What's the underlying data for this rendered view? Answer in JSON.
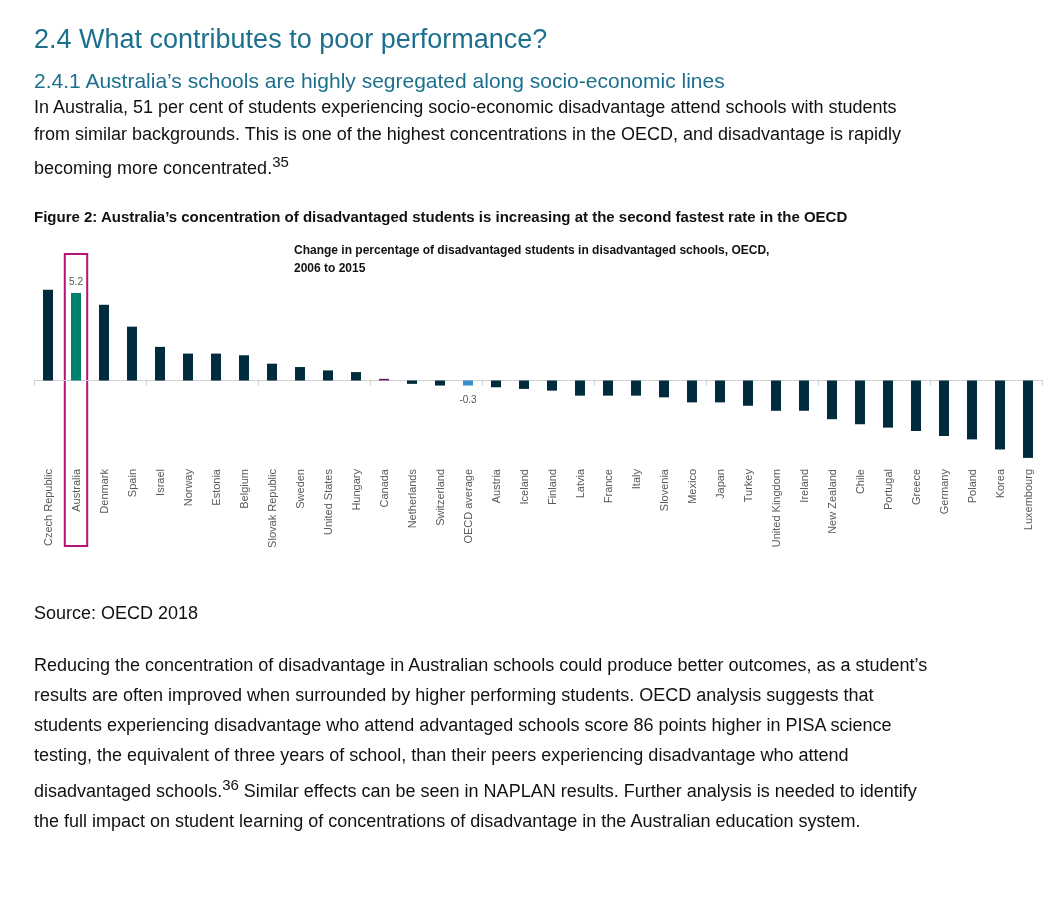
{
  "chart_data": {
    "type": "bar",
    "title": "Change in percentage of disadvantaged students in disadvantaged schools, OECD, 2006 to 2015",
    "categories": [
      "Czech Republic",
      "Australia",
      "Denmark",
      "Spain",
      "Israel",
      "Norway",
      "Estonia",
      "Belgium",
      "Slovak Republic",
      "Sweden",
      "United States",
      "Hungary",
      "Canada",
      "Netherlands",
      "Switzerland",
      "OECD average",
      "Austria",
      "Iceland",
      "Finland",
      "Latvia",
      "France",
      "Italy",
      "Slovenia",
      "Mexico",
      "Japan",
      "Turkey",
      "United Kingdom",
      "Ireland",
      "New Zealand",
      "Chile",
      "Portugal",
      "Greece",
      "Germany",
      "Poland",
      "Korea",
      "Luxembourg"
    ],
    "values": [
      5.4,
      5.2,
      4.5,
      3.2,
      2.0,
      1.6,
      1.6,
      1.5,
      1.0,
      0.8,
      0.6,
      0.5,
      0.1,
      -0.2,
      -0.3,
      -0.3,
      -0.4,
      -0.5,
      -0.6,
      -0.9,
      -0.9,
      -0.9,
      -1.0,
      -1.3,
      -1.3,
      -1.5,
      -1.8,
      -1.8,
      -2.3,
      -2.6,
      -2.8,
      -3.0,
      -3.3,
      -3.5,
      -4.1,
      -4.6
    ],
    "colors": [
      "#002b3d",
      "#00806f",
      "#002b3d",
      "#002b3d",
      "#002b3d",
      "#002b3d",
      "#002b3d",
      "#002b3d",
      "#002b3d",
      "#002b3d",
      "#002b3d",
      "#002b3d",
      "#6b1f5e",
      "#002b3d",
      "#002b3d",
      "#3a8fc9",
      "#002b3d",
      "#002b3d",
      "#002b3d",
      "#002b3d",
      "#002b3d",
      "#002b3d",
      "#002b3d",
      "#002b3d",
      "#002b3d",
      "#002b3d",
      "#002b3d",
      "#002b3d",
      "#002b3d",
      "#002b3d",
      "#002b3d",
      "#002b3d",
      "#002b3d",
      "#002b3d",
      "#002b3d",
      "#002b3d"
    ],
    "value_labels": [
      null,
      "5.2",
      null,
      null,
      null,
      null,
      null,
      null,
      null,
      null,
      null,
      null,
      null,
      null,
      null,
      "-0.3",
      null,
      null,
      null,
      null,
      null,
      null,
      null,
      null,
      null,
      null,
      null,
      null,
      null,
      null,
      null,
      null,
      null,
      null,
      null,
      null
    ],
    "tick_labels": "x",
    "annotations": [
      "2.4 What contributes to poor performance?",
      "2.4.1 Australia’s schools are highly segregated along socio-economic lines",
      "In Australia, 51 per cent of students experiencing socio-economic disadvantage attend schools with students from similar backgrounds. This is one of the highest concentrations in the OECD, and disadvantage is rapidly becoming more concentrated.$^{35}$",
      "Figure 2: Australia’s concentration of disadvantaged students is increasing at the second fastest rate in the OECD",
      "Source: OECD 2018",
      "Reducing the concentration of disadvantage in Australian schools could produce better outcomes, as a student’s results are often improved when surrounded by higher performing students. OECD analysis suggests that students experiencing disadvantage who attend advantaged schools score 86 points higher in PISA science testing, the equivalent of three years of school, than their peers experiencing disadvantage who attend disadvantaged schools.$^{36}$ Similar effects can be seen in NAPLAN results. Further analysis is needed to identify the full impact on student learning of concentrations of disadvantage in the Australian education system."
    ]
  }
}
